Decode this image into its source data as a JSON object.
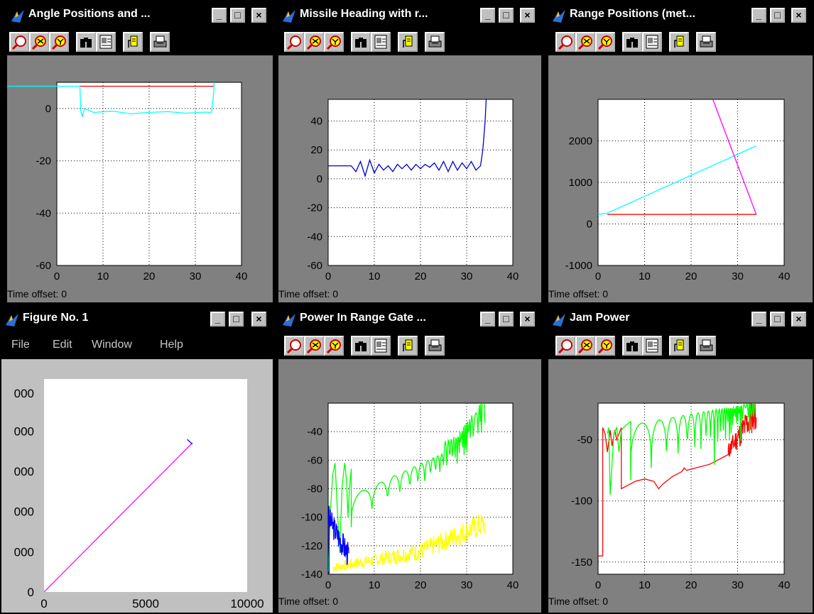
{
  "windows": {
    "angle": {
      "title": "Angle Positions and ...",
      "time_offset": "Time offset:  0",
      "chart_data": {
        "type": "line",
        "xlim": [
          0,
          40
        ],
        "ylim": [
          -60,
          10
        ],
        "yticks": [
          "0",
          "-20",
          "-40",
          "-60"
        ],
        "xticks": [
          "0",
          "10",
          "20",
          "30",
          "40"
        ],
        "series": [
          {
            "color": "#ff0000",
            "x": [
              5,
              34
            ],
            "y": [
              8.5,
              8.5
            ]
          },
          {
            "color": "#00ffff",
            "x": [
              -3,
              5,
              5.2,
              5.5,
              6,
              8,
              12,
              16,
              20,
              24,
              28,
              32,
              33.5,
              34,
              34.2
            ],
            "y": [
              8.5,
              8.5,
              -1,
              -3,
              0,
              -1.5,
              -1,
              -2,
              -1.5,
              -1.2,
              -1.8,
              -1.4,
              -1.5,
              6,
              20
            ]
          }
        ]
      }
    },
    "heading": {
      "title": "Missile Heading with r...",
      "time_offset": "Time offset:  0",
      "chart_data": {
        "type": "line",
        "xlim": [
          0,
          40
        ],
        "ylim": [
          -60,
          55
        ],
        "yticks": [
          "40",
          "20",
          "0",
          "-20",
          "-40",
          "-60"
        ],
        "xticks": [
          "0",
          "10",
          "20",
          "30",
          "40"
        ],
        "series": [
          {
            "color": "#0000cc",
            "name": "",
            "x": [
              -3,
              0,
              5,
              6,
              7,
              8,
              9,
              10,
              11,
              12,
              13,
              14,
              15,
              16,
              17,
              18,
              19,
              20,
              21,
              22,
              23,
              24,
              25,
              26,
              27,
              28,
              29,
              30,
              31,
              32,
              33,
              33.5,
              34,
              34.3
            ],
            "y": [
              9,
              9,
              9,
              5,
              12,
              2,
              13,
              4,
              10,
              6,
              9,
              5,
              10,
              7,
              10,
              6,
              10,
              7,
              10,
              8,
              11,
              6,
              12,
              5,
              12,
              6,
              11,
              7,
              12,
              6,
              9,
              20,
              40,
              60
            ]
          }
        ]
      }
    },
    "range": {
      "title": "Range Positions (met...",
      "time_offset": "Time offset:  0",
      "chart_data": {
        "type": "line",
        "xlim": [
          0,
          40
        ],
        "ylim": [
          -1000,
          3000
        ],
        "yticks": [
          "2000",
          "1000",
          "0",
          "-1000"
        ],
        "xticks": [
          "0",
          "10",
          "20",
          "30",
          "40"
        ],
        "series": [
          {
            "color": "#ff0000",
            "x": [
              2,
              34
            ],
            "y": [
              230,
              230
            ]
          },
          {
            "color": "#00ffff",
            "x": [
              0,
              2,
              34
            ],
            "y": [
              230,
              260,
              1880
            ]
          },
          {
            "color": "#ff00ff",
            "x": [
              24,
              34
            ],
            "y": [
              3200,
              230
            ]
          }
        ]
      }
    },
    "figure1": {
      "title": "Figure No. 1",
      "menu": [
        "File",
        "Edit",
        "Window",
        "Help"
      ],
      "chart_data": {
        "type": "line",
        "xlim": [
          0,
          10000
        ],
        "ylim": [
          0,
          9000
        ],
        "xticks": [
          "0",
          "5000",
          "10000"
        ],
        "yticks": [
          "0",
          "000",
          "000",
          "000",
          "000",
          "000"
        ],
        "series": [
          {
            "color": "#ff00ff",
            "x": [
              0,
              7300
            ],
            "y": [
              0,
              6300
            ]
          },
          {
            "color": "#0000ff",
            "x": [
              7050,
              7300
            ],
            "y": [
              6450,
              6250
            ]
          }
        ]
      }
    },
    "power": {
      "title": "Power In Range Gate ...",
      "time_offset": "Time offset:  0",
      "chart_data": {
        "type": "line",
        "xlim": [
          0,
          40
        ],
        "ylim": [
          -140,
          -20
        ],
        "yticks": [
          "-40",
          "-60",
          "-80",
          "-100",
          "-120",
          "-140"
        ],
        "xticks": [
          "0",
          "10",
          "20",
          "30",
          "40"
        ]
      }
    },
    "jam": {
      "title": "Jam Power",
      "time_offset": "Time offset:  0",
      "chart_data": {
        "type": "line",
        "xlim": [
          0,
          40
        ],
        "ylim": [
          -160,
          -20
        ],
        "yticks": [
          "-50",
          "-100",
          "-150"
        ],
        "xticks": [
          "0",
          "10",
          "20",
          "30",
          "40"
        ]
      }
    }
  },
  "icons": {
    "minimize": "_",
    "maximize": "□",
    "close": "×"
  }
}
